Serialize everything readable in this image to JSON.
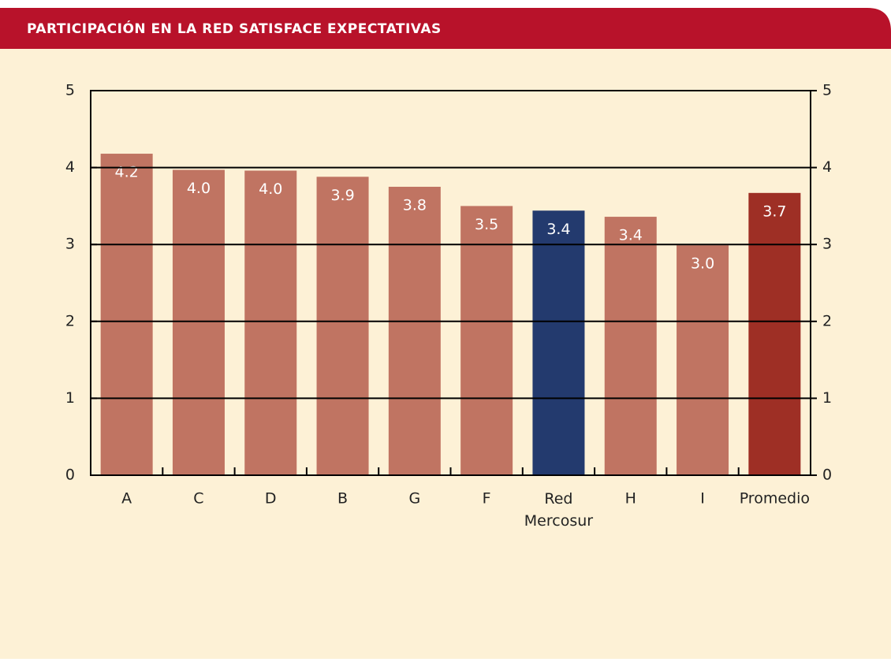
{
  "chart_data": {
    "type": "bar",
    "title": "PARTICIPACIÓN EN LA RED SATISFACE EXPECTATIVAS",
    "categories": [
      "A",
      "C",
      "D",
      "B",
      "G",
      "F",
      "Red Mercosur",
      "H",
      "I",
      "Promedio"
    ],
    "values": [
      4.18,
      3.97,
      3.96,
      3.88,
      3.75,
      3.5,
      3.44,
      3.36,
      2.99,
      3.67
    ],
    "value_labels": [
      "4.2",
      "4.0",
      "4.0",
      "3.9",
      "3.8",
      "3.5",
      "3.4",
      "3.4",
      "3.0",
      "3.7"
    ],
    "colors": [
      "#c07462",
      "#c07462",
      "#c07462",
      "#c07462",
      "#c07462",
      "#c07462",
      "#233a6e",
      "#c07462",
      "#c07462",
      "#9e2f25"
    ],
    "ylim": [
      0,
      5
    ],
    "yticks": [
      0,
      1,
      2,
      3,
      4,
      5
    ],
    "y2lim": [
      0,
      5
    ],
    "y2ticks": [
      0,
      1,
      2,
      3,
      4,
      5
    ],
    "grid": true
  }
}
